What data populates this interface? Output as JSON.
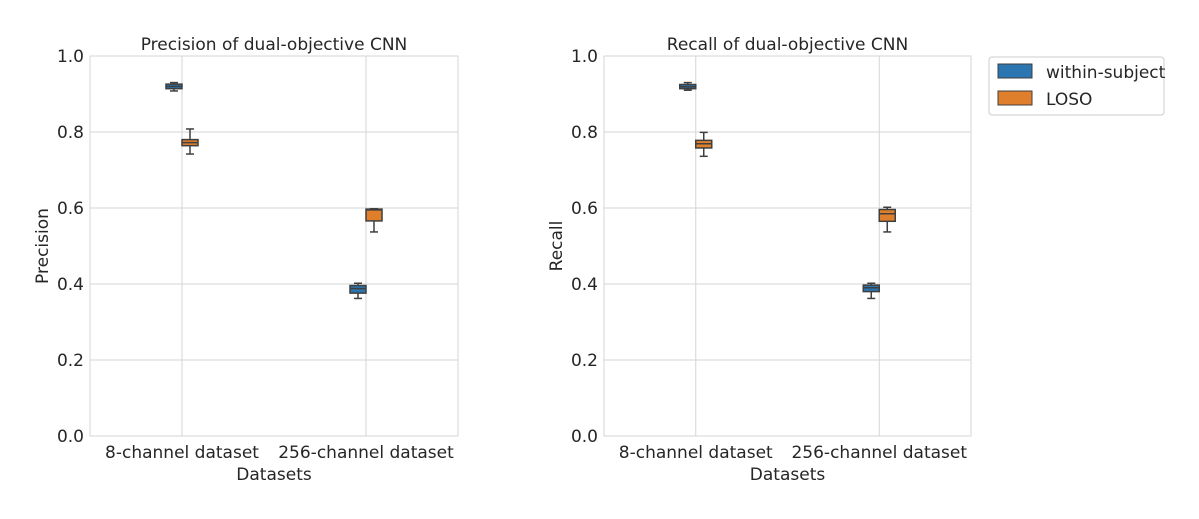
{
  "legend": {
    "items": [
      {
        "label": "within-subject",
        "color": "#2b75b0"
      },
      {
        "label": "LOSO",
        "color": "#e07f2b"
      }
    ]
  },
  "chart_data": [
    {
      "type": "box",
      "title": "Precision of dual-objective CNN",
      "xlabel": "Datasets",
      "ylabel": "Precision",
      "ylim": [
        0.0,
        1.0
      ],
      "yticks": [
        "0.0",
        "0.2",
        "0.4",
        "0.6",
        "0.8",
        "1.0"
      ],
      "categories": [
        "8-channel dataset",
        "256-channel dataset"
      ],
      "grid": true,
      "series": [
        {
          "name": "within-subject",
          "color": "#2b75b0",
          "boxes": [
            {
              "min": 0.908,
              "q1": 0.914,
              "median": 0.92,
              "q3": 0.926,
              "max": 0.93
            },
            {
              "min": 0.362,
              "q1": 0.376,
              "median": 0.388,
              "q3": 0.396,
              "max": 0.402
            }
          ]
        },
        {
          "name": "LOSO",
          "color": "#e07f2b",
          "boxes": [
            {
              "min": 0.742,
              "q1": 0.764,
              "median": 0.772,
              "q3": 0.78,
              "max": 0.808
            },
            {
              "min": 0.537,
              "q1": 0.566,
              "median": 0.595,
              "q3": 0.597,
              "max": 0.598
            }
          ]
        }
      ]
    },
    {
      "type": "box",
      "title": "Recall of dual-objective CNN",
      "xlabel": "Datasets",
      "ylabel": "Recall",
      "ylim": [
        0.0,
        1.0
      ],
      "yticks": [
        "0.0",
        "0.2",
        "0.4",
        "0.6",
        "0.8",
        "1.0"
      ],
      "categories": [
        "8-channel dataset",
        "256-channel dataset"
      ],
      "grid": true,
      "series": [
        {
          "name": "within-subject",
          "color": "#2b75b0",
          "boxes": [
            {
              "min": 0.91,
              "q1": 0.914,
              "median": 0.919,
              "q3": 0.925,
              "max": 0.93
            },
            {
              "min": 0.362,
              "q1": 0.38,
              "median": 0.39,
              "q3": 0.397,
              "max": 0.402
            }
          ]
        },
        {
          "name": "LOSO",
          "color": "#e07f2b",
          "boxes": [
            {
              "min": 0.736,
              "q1": 0.758,
              "median": 0.769,
              "q3": 0.778,
              "max": 0.799
            },
            {
              "min": 0.537,
              "q1": 0.565,
              "median": 0.585,
              "q3": 0.596,
              "max": 0.602
            }
          ]
        }
      ]
    }
  ]
}
